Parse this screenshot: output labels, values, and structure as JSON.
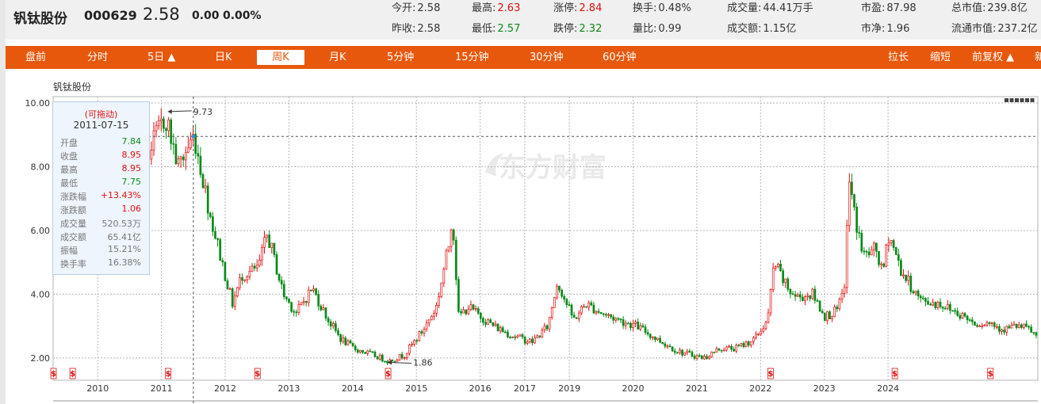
{
  "quote": {
    "name": "钒钛股份",
    "code": "000629",
    "price": "2.58",
    "change": "0.00",
    "change_pct": "0.00%",
    "stats": [
      {
        "label": "今开:",
        "value": "2.58",
        "tone": "neutral"
      },
      {
        "label": "最高:",
        "value": "2.63",
        "tone": "red"
      },
      {
        "label": "涨停:",
        "value": "2.84",
        "tone": "red"
      },
      {
        "label": "换手:",
        "value": "0.48%",
        "tone": "neutral"
      },
      {
        "label": "成交量:",
        "value": "44.41万手",
        "tone": "neutral"
      },
      {
        "label": "市盈:",
        "value": "87.98",
        "tone": "neutral"
      },
      {
        "label": "总市值:",
        "value": "239.8亿",
        "tone": "neutral"
      },
      {
        "label": "昨收:",
        "value": "2.58",
        "tone": "neutral"
      },
      {
        "label": "最低:",
        "value": "2.57",
        "tone": "green"
      },
      {
        "label": "跌停:",
        "value": "2.32",
        "tone": "green"
      },
      {
        "label": "量比:",
        "value": "0.99",
        "tone": "neutral"
      },
      {
        "label": "成交额:",
        "value": "1.15亿",
        "tone": "neutral"
      },
      {
        "label": "市净:",
        "value": "1.96",
        "tone": "neutral"
      },
      {
        "label": "流通市值:",
        "value": "237.2亿",
        "tone": "neutral"
      }
    ]
  },
  "tabs": {
    "left": [
      {
        "label": "盘前"
      },
      {
        "label": "分时"
      },
      {
        "label": "5日 ▲"
      },
      {
        "label": "日K"
      },
      {
        "label": "周K",
        "active": true
      },
      {
        "label": "月K"
      },
      {
        "label": "5分钟"
      },
      {
        "label": "15分钟"
      },
      {
        "label": "30分钟"
      },
      {
        "label": "60分钟"
      }
    ],
    "right": [
      {
        "label": "拉长"
      },
      {
        "label": "缩短"
      },
      {
        "label": "前复权 ▲"
      },
      {
        "label": "新"
      }
    ]
  },
  "colors": {
    "accent": "#e8580c",
    "up": "#e01010",
    "down": "#0a8a1a",
    "grid": "#b5b5b5",
    "tooltip_bg": "#eef5fc"
  },
  "chart_title": "钒钛股份",
  "watermark": "东方财富",
  "tooltip": {
    "drag_label": "(可拖动)",
    "date": "2011-07-15",
    "rows": [
      {
        "label": "开盘",
        "value": "7.84",
        "tone": "green"
      },
      {
        "label": "收盘",
        "value": "8.95",
        "tone": "red"
      },
      {
        "label": "最高",
        "value": "8.95",
        "tone": "red"
      },
      {
        "label": "最低",
        "value": "7.75",
        "tone": "green"
      },
      {
        "label": "涨跌幅",
        "value": "+13.43%",
        "tone": "red"
      },
      {
        "label": "涨跌额",
        "value": "1.06",
        "tone": "red"
      },
      {
        "label": "成交量",
        "value": "520.53万",
        "tone": "neutral"
      },
      {
        "label": "成交额",
        "value": "65.41亿",
        "tone": "neutral"
      },
      {
        "label": "振幅",
        "value": "15.21%",
        "tone": "neutral"
      },
      {
        "label": "换手率",
        "value": "16.38%",
        "tone": "neutral"
      }
    ]
  },
  "chart_data": {
    "type": "candlestick",
    "title": "钒钛股份",
    "interval": "weekly",
    "y_ticks": [
      "10.00",
      "8.00",
      "6.00",
      "4.00",
      "2.00"
    ],
    "ylim": [
      1.3,
      10.2
    ],
    "xlim": [
      2009.3,
      2024.75
    ],
    "x_ticks": [
      {
        "label": "2010",
        "x": 2010.0
      },
      {
        "label": "2011",
        "x": 2011.0
      },
      {
        "label": "2012",
        "x": 2012.0
      },
      {
        "label": "2013",
        "x": 2013.0
      },
      {
        "label": "2014",
        "x": 2014.0
      },
      {
        "label": "2015",
        "x": 2015.0
      },
      {
        "label": "2016",
        "x": 2016.0
      },
      {
        "label": "2017",
        "x": 2016.7
      },
      {
        "label": "2019",
        "x": 2017.4
      },
      {
        "label": "2020",
        "x": 2018.4
      },
      {
        "label": "2021",
        "x": 2019.4
      },
      {
        "label": "2022",
        "x": 2020.4
      },
      {
        "label": "2023",
        "x": 2021.4
      },
      {
        "label": "2024",
        "x": 2022.4
      }
    ],
    "price_path": [
      [
        2009.3,
        5.3
      ],
      [
        2009.6,
        5.4
      ],
      [
        2010.2,
        5.5
      ],
      [
        2010.5,
        5.9
      ],
      [
        2010.7,
        8.0
      ],
      [
        2010.85,
        8.7
      ],
      [
        2011.05,
        9.6
      ],
      [
        2011.25,
        8.0
      ],
      [
        2011.5,
        9.0
      ],
      [
        2011.75,
        6.5
      ],
      [
        2011.9,
        5.3
      ],
      [
        2012.1,
        3.7
      ],
      [
        2012.25,
        4.6
      ],
      [
        2012.5,
        4.8
      ],
      [
        2012.65,
        5.9
      ],
      [
        2012.9,
        4.0
      ],
      [
        2013.1,
        3.4
      ],
      [
        2013.35,
        4.2
      ],
      [
        2013.6,
        3.2
      ],
      [
        2013.8,
        2.6
      ],
      [
        2014.0,
        2.3
      ],
      [
        2014.3,
        2.1
      ],
      [
        2014.55,
        1.9
      ],
      [
        2014.8,
        2.1
      ],
      [
        2015.1,
        2.9
      ],
      [
        2015.3,
        3.6
      ],
      [
        2015.5,
        5.6
      ],
      [
        2015.55,
        6.6
      ],
      [
        2015.65,
        3.3
      ],
      [
        2015.8,
        3.6
      ],
      [
        2016.0,
        3.3
      ],
      [
        2016.2,
        3.0
      ],
      [
        2016.5,
        2.7
      ],
      [
        2016.8,
        2.5
      ],
      [
        2017.05,
        3.0
      ],
      [
        2017.2,
        4.4
      ],
      [
        2017.45,
        3.2
      ],
      [
        2017.65,
        3.7
      ],
      [
        2017.9,
        3.4
      ],
      [
        2018.15,
        3.2
      ],
      [
        2018.45,
        3.0
      ],
      [
        2018.75,
        2.6
      ],
      [
        2019.1,
        2.2
      ],
      [
        2019.3,
        2.1
      ],
      [
        2019.5,
        2.0
      ],
      [
        2019.75,
        2.3
      ],
      [
        2020.0,
        2.3
      ],
      [
        2020.3,
        2.6
      ],
      [
        2020.5,
        3.2
      ],
      [
        2020.6,
        5.0
      ],
      [
        2020.8,
        4.2
      ],
      [
        2020.95,
        3.9
      ],
      [
        2021.2,
        4.0
      ],
      [
        2021.4,
        3.3
      ],
      [
        2021.6,
        3.5
      ],
      [
        2021.7,
        4.2
      ],
      [
        2021.78,
        7.6
      ],
      [
        2021.85,
        6.6
      ],
      [
        2022.0,
        5.2
      ],
      [
        2022.2,
        5.4
      ],
      [
        2022.3,
        4.6
      ],
      [
        2022.4,
        5.9
      ],
      [
        2022.6,
        4.7
      ],
      [
        2022.9,
        3.8
      ],
      [
        2023.2,
        3.7
      ],
      [
        2023.5,
        3.4
      ],
      [
        2023.75,
        3.1
      ],
      [
        2024.0,
        3.1
      ],
      [
        2024.2,
        2.9
      ],
      [
        2024.4,
        3.0
      ],
      [
        2024.6,
        2.9
      ],
      [
        2024.75,
        2.6
      ]
    ],
    "annotations": [
      {
        "label": "9.73",
        "x": 2011.1,
        "y": 9.73,
        "kind": "max"
      },
      {
        "label": "1.86",
        "x": 2014.55,
        "y": 1.86,
        "kind": "min"
      }
    ],
    "crosshair": {
      "date": "2011-07-15",
      "x": 2011.5,
      "y": 8.95
    },
    "dividend_markers": [
      2009.3,
      2009.6,
      2011.1,
      2012.5,
      2014.55,
      2020.55,
      2022.5,
      2024.0
    ],
    "dividend_symbol": "$"
  }
}
